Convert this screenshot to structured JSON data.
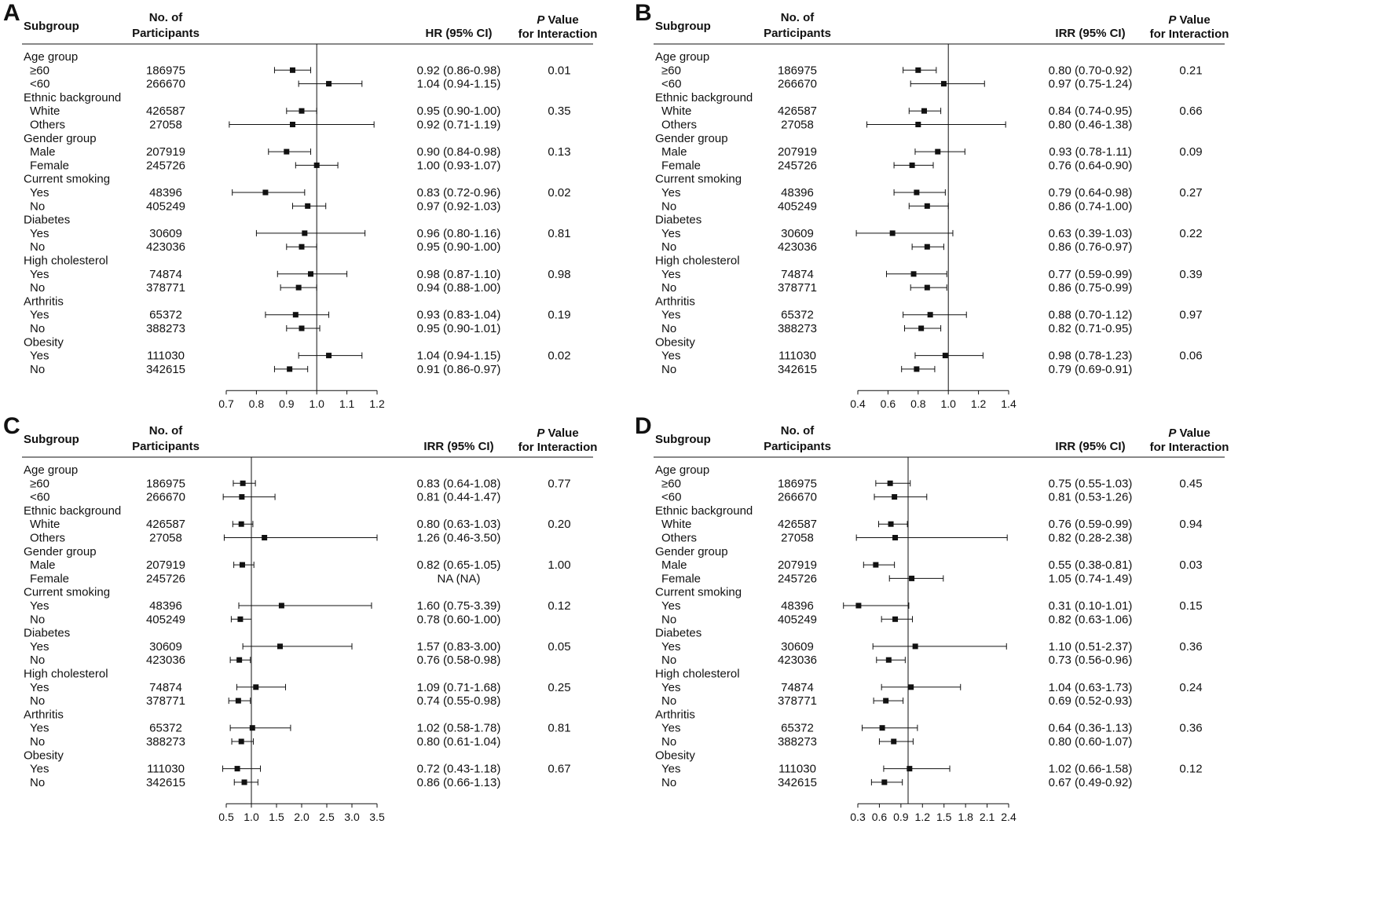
{
  "figure": {
    "headers": {
      "subgroup": "Subgroup",
      "participants_line1": "No. of",
      "participants_line2": "Participants",
      "p_italic": "P",
      "p_line1_rest": " Value",
      "p_line2": "for Interaction"
    }
  },
  "chart_data": [
    {
      "panel": "A",
      "type": "forest",
      "effect_label": "HR (95% CI)",
      "xlim": [
        0.7,
        1.2
      ],
      "xticks": [
        "0.7",
        "0.8",
        "0.9",
        "1.0",
        "1.1",
        "1.2"
      ],
      "reference": 1.0,
      "groups": [
        {
          "name": "Age group",
          "p": "0.01",
          "rows": [
            {
              "label": "≥60",
              "n": "186975",
              "est": 0.92,
              "lo": 0.86,
              "hi": 0.98,
              "ci": "0.92 (0.86-0.98)"
            },
            {
              "label": "<60",
              "n": "266670",
              "est": 1.04,
              "lo": 0.94,
              "hi": 1.15,
              "ci": "1.04 (0.94-1.15)"
            }
          ]
        },
        {
          "name": "Ethnic background",
          "p": "0.35",
          "rows": [
            {
              "label": "White",
              "n": "426587",
              "est": 0.95,
              "lo": 0.9,
              "hi": 1.0,
              "ci": "0.95 (0.90-1.00)"
            },
            {
              "label": "Others",
              "n": "27058",
              "est": 0.92,
              "lo": 0.71,
              "hi": 1.19,
              "ci": "0.92 (0.71-1.19)"
            }
          ]
        },
        {
          "name": "Gender group",
          "p": "0.13",
          "rows": [
            {
              "label": "Male",
              "n": "207919",
              "est": 0.9,
              "lo": 0.84,
              "hi": 0.98,
              "ci": "0.90 (0.84-0.98)"
            },
            {
              "label": "Female",
              "n": "245726",
              "est": 1.0,
              "lo": 0.93,
              "hi": 1.07,
              "ci": "1.00 (0.93-1.07)"
            }
          ]
        },
        {
          "name": "Current smoking",
          "p": "0.02",
          "rows": [
            {
              "label": "Yes",
              "n": "48396",
              "est": 0.83,
              "lo": 0.72,
              "hi": 0.96,
              "ci": "0.83 (0.72-0.96)"
            },
            {
              "label": "No",
              "n": "405249",
              "est": 0.97,
              "lo": 0.92,
              "hi": 1.03,
              "ci": "0.97 (0.92-1.03)"
            }
          ]
        },
        {
          "name": "Diabetes",
          "p": "0.81",
          "rows": [
            {
              "label": "Yes",
              "n": "30609",
              "est": 0.96,
              "lo": 0.8,
              "hi": 1.16,
              "ci": "0.96 (0.80-1.16)"
            },
            {
              "label": "No",
              "n": "423036",
              "est": 0.95,
              "lo": 0.9,
              "hi": 1.0,
              "ci": "0.95 (0.90-1.00)"
            }
          ]
        },
        {
          "name": "High cholesterol",
          "p": "0.98",
          "rows": [
            {
              "label": "Yes",
              "n": "74874",
              "est": 0.98,
              "lo": 0.87,
              "hi": 1.1,
              "ci": "0.98 (0.87-1.10)"
            },
            {
              "label": "No",
              "n": "378771",
              "est": 0.94,
              "lo": 0.88,
              "hi": 1.0,
              "ci": "0.94 (0.88-1.00)"
            }
          ]
        },
        {
          "name": "Arthritis",
          "p": "0.19",
          "rows": [
            {
              "label": "Yes",
              "n": "65372",
              "est": 0.93,
              "lo": 0.83,
              "hi": 1.04,
              "ci": "0.93 (0.83-1.04)"
            },
            {
              "label": "No",
              "n": "388273",
              "est": 0.95,
              "lo": 0.9,
              "hi": 1.01,
              "ci": "0.95 (0.90-1.01)"
            }
          ]
        },
        {
          "name": "Obesity",
          "p": "0.02",
          "rows": [
            {
              "label": "Yes",
              "n": "111030",
              "est": 1.04,
              "lo": 0.94,
              "hi": 1.15,
              "ci": "1.04 (0.94-1.15)"
            },
            {
              "label": "No",
              "n": "342615",
              "est": 0.91,
              "lo": 0.86,
              "hi": 0.97,
              "ci": "0.91 (0.86-0.97)"
            }
          ]
        }
      ]
    },
    {
      "panel": "B",
      "type": "forest",
      "effect_label": "IRR (95% CI)",
      "xlim": [
        0.4,
        1.4
      ],
      "xticks": [
        "0.4",
        "0.6",
        "0.8",
        "1.0",
        "1.2",
        "1.4"
      ],
      "reference": 1.0,
      "groups": [
        {
          "name": "Age group",
          "p": "0.21",
          "rows": [
            {
              "label": "≥60",
              "n": "186975",
              "est": 0.8,
              "lo": 0.7,
              "hi": 0.92,
              "ci": "0.80 (0.70-0.92)"
            },
            {
              "label": "<60",
              "n": "266670",
              "est": 0.97,
              "lo": 0.75,
              "hi": 1.24,
              "ci": "0.97 (0.75-1.24)"
            }
          ]
        },
        {
          "name": "Ethnic background",
          "p": "0.66",
          "rows": [
            {
              "label": "White",
              "n": "426587",
              "est": 0.84,
              "lo": 0.74,
              "hi": 0.95,
              "ci": "0.84 (0.74-0.95)"
            },
            {
              "label": "Others",
              "n": "27058",
              "est": 0.8,
              "lo": 0.46,
              "hi": 1.38,
              "ci": "0.80 (0.46-1.38)"
            }
          ]
        },
        {
          "name": "Gender group",
          "p": "0.09",
          "rows": [
            {
              "label": "Male",
              "n": "207919",
              "est": 0.93,
              "lo": 0.78,
              "hi": 1.11,
              "ci": "0.93 (0.78-1.11)"
            },
            {
              "label": "Female",
              "n": "245726",
              "est": 0.76,
              "lo": 0.64,
              "hi": 0.9,
              "ci": "0.76 (0.64-0.90)"
            }
          ]
        },
        {
          "name": "Current smoking",
          "p": "0.27",
          "rows": [
            {
              "label": "Yes",
              "n": "48396",
              "est": 0.79,
              "lo": 0.64,
              "hi": 0.98,
              "ci": "0.79 (0.64-0.98)"
            },
            {
              "label": "No",
              "n": "405249",
              "est": 0.86,
              "lo": 0.74,
              "hi": 1.0,
              "ci": "0.86 (0.74-1.00)"
            }
          ]
        },
        {
          "name": "Diabetes",
          "p": "0.22",
          "rows": [
            {
              "label": "Yes",
              "n": "30609",
              "est": 0.63,
              "lo": 0.39,
              "hi": 1.03,
              "ci": "0.63 (0.39-1.03)"
            },
            {
              "label": "No",
              "n": "423036",
              "est": 0.86,
              "lo": 0.76,
              "hi": 0.97,
              "ci": "0.86 (0.76-0.97)"
            }
          ]
        },
        {
          "name": "High cholesterol",
          "p": "0.39",
          "rows": [
            {
              "label": "Yes",
              "n": "74874",
              "est": 0.77,
              "lo": 0.59,
              "hi": 0.99,
              "ci": "0.77 (0.59-0.99)"
            },
            {
              "label": "No",
              "n": "378771",
              "est": 0.86,
              "lo": 0.75,
              "hi": 0.99,
              "ci": "0.86 (0.75-0.99)"
            }
          ]
        },
        {
          "name": "Arthritis",
          "p": "0.97",
          "rows": [
            {
              "label": "Yes",
              "n": "65372",
              "est": 0.88,
              "lo": 0.7,
              "hi": 1.12,
              "ci": "0.88 (0.70-1.12)"
            },
            {
              "label": "No",
              "n": "388273",
              "est": 0.82,
              "lo": 0.71,
              "hi": 0.95,
              "ci": "0.82 (0.71-0.95)"
            }
          ]
        },
        {
          "name": "Obesity",
          "p": "0.06",
          "rows": [
            {
              "label": "Yes",
              "n": "111030",
              "est": 0.98,
              "lo": 0.78,
              "hi": 1.23,
              "ci": "0.98 (0.78-1.23)"
            },
            {
              "label": "No",
              "n": "342615",
              "est": 0.79,
              "lo": 0.69,
              "hi": 0.91,
              "ci": "0.79 (0.69-0.91)"
            }
          ]
        }
      ]
    },
    {
      "panel": "C",
      "type": "forest",
      "effect_label": "IRR (95% CI)",
      "xlim": [
        0.5,
        3.5
      ],
      "xticks": [
        "0.5",
        "1.0",
        "1.5",
        "2.0",
        "2.5",
        "3.0",
        "3.5"
      ],
      "reference": 1.0,
      "groups": [
        {
          "name": "Age group",
          "p": "0.77",
          "rows": [
            {
              "label": "≥60",
              "n": "186975",
              "est": 0.83,
              "lo": 0.64,
              "hi": 1.08,
              "ci": "0.83 (0.64-1.08)"
            },
            {
              "label": "<60",
              "n": "266670",
              "est": 0.81,
              "lo": 0.44,
              "hi": 1.47,
              "ci": "0.81 (0.44-1.47)"
            }
          ]
        },
        {
          "name": "Ethnic background",
          "p": "0.20",
          "rows": [
            {
              "label": "White",
              "n": "426587",
              "est": 0.8,
              "lo": 0.63,
              "hi": 1.03,
              "ci": "0.80 (0.63-1.03)"
            },
            {
              "label": "Others",
              "n": "27058",
              "est": 1.26,
              "lo": 0.46,
              "hi": 3.5,
              "ci": "1.26 (0.46-3.50)"
            }
          ]
        },
        {
          "name": "Gender group",
          "p": "1.00",
          "rows": [
            {
              "label": "Male",
              "n": "207919",
              "est": 0.82,
              "lo": 0.65,
              "hi": 1.05,
              "ci": "0.82 (0.65-1.05)"
            },
            {
              "label": "Female",
              "n": "245726",
              "est": null,
              "lo": null,
              "hi": null,
              "ci": "NA (NA)"
            }
          ]
        },
        {
          "name": "Current smoking",
          "p": "0.12",
          "rows": [
            {
              "label": "Yes",
              "n": "48396",
              "est": 1.6,
              "lo": 0.75,
              "hi": 3.39,
              "ci": "1.60 (0.75-3.39)"
            },
            {
              "label": "No",
              "n": "405249",
              "est": 0.78,
              "lo": 0.6,
              "hi": 1.0,
              "ci": "0.78 (0.60-1.00)"
            }
          ]
        },
        {
          "name": "Diabetes",
          "p": "0.05",
          "rows": [
            {
              "label": "Yes",
              "n": "30609",
              "est": 1.57,
              "lo": 0.83,
              "hi": 3.0,
              "ci": "1.57 (0.83-3.00)"
            },
            {
              "label": "No",
              "n": "423036",
              "est": 0.76,
              "lo": 0.58,
              "hi": 0.98,
              "ci": "0.76 (0.58-0.98)"
            }
          ]
        },
        {
          "name": "High cholesterol",
          "p": "0.25",
          "rows": [
            {
              "label": "Yes",
              "n": "74874",
              "est": 1.09,
              "lo": 0.71,
              "hi": 1.68,
              "ci": "1.09 (0.71-1.68)"
            },
            {
              "label": "No",
              "n": "378771",
              "est": 0.74,
              "lo": 0.55,
              "hi": 0.98,
              "ci": "0.74 (0.55-0.98)"
            }
          ]
        },
        {
          "name": "Arthritis",
          "p": "0.81",
          "rows": [
            {
              "label": "Yes",
              "n": "65372",
              "est": 1.02,
              "lo": 0.58,
              "hi": 1.78,
              "ci": "1.02 (0.58-1.78)"
            },
            {
              "label": "No",
              "n": "388273",
              "est": 0.8,
              "lo": 0.61,
              "hi": 1.04,
              "ci": "0.80 (0.61-1.04)"
            }
          ]
        },
        {
          "name": "Obesity",
          "p": "0.67",
          "rows": [
            {
              "label": "Yes",
              "n": "111030",
              "est": 0.72,
              "lo": 0.43,
              "hi": 1.18,
              "ci": "0.72 (0.43-1.18)"
            },
            {
              "label": "No",
              "n": "342615",
              "est": 0.86,
              "lo": 0.66,
              "hi": 1.13,
              "ci": "0.86 (0.66-1.13)"
            }
          ]
        }
      ]
    },
    {
      "panel": "D",
      "type": "forest",
      "effect_label": "IRR (95% CI)",
      "xlim": [
        0.3,
        2.4
      ],
      "xticks": [
        "0.3",
        "0.6",
        "0.9",
        "1.2",
        "1.5",
        "1.8",
        "2.1",
        "2.4"
      ],
      "reference": 1.0,
      "groups": [
        {
          "name": "Age group",
          "p": "0.45",
          "rows": [
            {
              "label": "≥60",
              "n": "186975",
              "est": 0.75,
              "lo": 0.55,
              "hi": 1.03,
              "ci": "0.75 (0.55-1.03)"
            },
            {
              "label": "<60",
              "n": "266670",
              "est": 0.81,
              "lo": 0.53,
              "hi": 1.26,
              "ci": "0.81 (0.53-1.26)"
            }
          ]
        },
        {
          "name": "Ethnic background",
          "p": "0.94",
          "rows": [
            {
              "label": "White",
              "n": "426587",
              "est": 0.76,
              "lo": 0.59,
              "hi": 0.99,
              "ci": "0.76 (0.59-0.99)"
            },
            {
              "label": "Others",
              "n": "27058",
              "est": 0.82,
              "lo": 0.28,
              "hi": 2.38,
              "ci": "0.82 (0.28-2.38)"
            }
          ]
        },
        {
          "name": "Gender group",
          "p": "0.03",
          "rows": [
            {
              "label": "Male",
              "n": "207919",
              "est": 0.55,
              "lo": 0.38,
              "hi": 0.81,
              "ci": "0.55 (0.38-0.81)"
            },
            {
              "label": "Female",
              "n": "245726",
              "est": 1.05,
              "lo": 0.74,
              "hi": 1.49,
              "ci": "1.05 (0.74-1.49)"
            }
          ]
        },
        {
          "name": "Current smoking",
          "p": "0.15",
          "rows": [
            {
              "label": "Yes",
              "n": "48396",
              "est": 0.31,
              "lo": 0.1,
              "hi": 1.01,
              "ci": "0.31 (0.10-1.01)"
            },
            {
              "label": "No",
              "n": "405249",
              "est": 0.82,
              "lo": 0.63,
              "hi": 1.06,
              "ci": "0.82 (0.63-1.06)"
            }
          ]
        },
        {
          "name": "Diabetes",
          "p": "0.36",
          "rows": [
            {
              "label": "Yes",
              "n": "30609",
              "est": 1.1,
              "lo": 0.51,
              "hi": 2.37,
              "ci": "1.10 (0.51-2.37)"
            },
            {
              "label": "No",
              "n": "423036",
              "est": 0.73,
              "lo": 0.56,
              "hi": 0.96,
              "ci": "0.73 (0.56-0.96)"
            }
          ]
        },
        {
          "name": "High cholesterol",
          "p": "0.24",
          "rows": [
            {
              "label": "Yes",
              "n": "74874",
              "est": 1.04,
              "lo": 0.63,
              "hi": 1.73,
              "ci": "1.04 (0.63-1.73)"
            },
            {
              "label": "No",
              "n": "378771",
              "est": 0.69,
              "lo": 0.52,
              "hi": 0.93,
              "ci": "0.69 (0.52-0.93)"
            }
          ]
        },
        {
          "name": "Arthritis",
          "p": "0.36",
          "rows": [
            {
              "label": "Yes",
              "n": "65372",
              "est": 0.64,
              "lo": 0.36,
              "hi": 1.13,
              "ci": "0.64 (0.36-1.13)"
            },
            {
              "label": "No",
              "n": "388273",
              "est": 0.8,
              "lo": 0.6,
              "hi": 1.07,
              "ci": "0.80 (0.60-1.07)"
            }
          ]
        },
        {
          "name": "Obesity",
          "p": "0.12",
          "rows": [
            {
              "label": "Yes",
              "n": "111030",
              "est": 1.02,
              "lo": 0.66,
              "hi": 1.58,
              "ci": "1.02 (0.66-1.58)"
            },
            {
              "label": "No",
              "n": "342615",
              "est": 0.67,
              "lo": 0.49,
              "hi": 0.92,
              "ci": "0.67 (0.49-0.92)"
            }
          ]
        }
      ]
    }
  ]
}
